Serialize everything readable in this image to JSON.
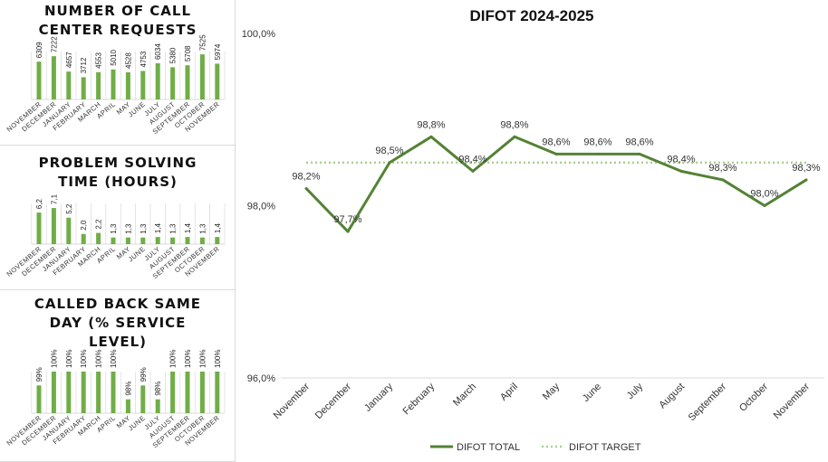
{
  "colors": {
    "bar": "#70ad47",
    "line": "#548235",
    "target": "#a9d18e",
    "grid": "#d9d9d9"
  },
  "chart_data": [
    {
      "type": "bar",
      "title": "NUMBER OF CALL CENTER REQUESTS",
      "categories": [
        "NOVEMBER",
        "DECEMBER",
        "JANUARY",
        "FEBRUARY",
        "MARCH",
        "APRIL",
        "MAY",
        "JUNE",
        "JULY",
        "AUGUST",
        "SEPTEMBER",
        "OCTOBER",
        "NOVEMBER"
      ],
      "values": [
        6309,
        7222,
        4657,
        3712,
        4553,
        5010,
        4528,
        4753,
        6034,
        5380,
        5708,
        7525,
        5974
      ],
      "labels": [
        "6309",
        "7222",
        "4657",
        "3712",
        "4553",
        "5010",
        "4528",
        "4753",
        "6034",
        "5380",
        "5708",
        "7525",
        "5974"
      ],
      "ylim": [
        0,
        8000
      ]
    },
    {
      "type": "bar",
      "title": "PROBLEM SOLVING TIME (HOURS)",
      "categories": [
        "NOVEMBER",
        "DECEMBER",
        "JANUARY",
        "FEBRUARY",
        "MARCH",
        "APRIL",
        "MAY",
        "JUNE",
        "JULY",
        "AUGUST",
        "SEPTEMBER",
        "OCTOBER",
        "NOVEMBER"
      ],
      "values": [
        6.2,
        7.1,
        5.2,
        2.0,
        2.2,
        1.3,
        1.3,
        1.3,
        1.4,
        1.3,
        1.4,
        1.3,
        1.4
      ],
      "labels": [
        "6,2",
        "7,1",
        "5,2",
        "2,0",
        "2,2",
        "1,3",
        "1,3",
        "1,3",
        "1,4",
        "1,3",
        "1,4",
        "1,3",
        "1,4"
      ],
      "ylim": [
        0,
        8
      ]
    },
    {
      "type": "bar",
      "title": "CALLED BACK SAME DAY (% SERVICE LEVEL)",
      "categories": [
        "NOVEMBER",
        "DECEMBER",
        "JANUARY",
        "FEBRUARY",
        "MARCH",
        "APRIL",
        "MAY",
        "JUNE",
        "JULY",
        "AUGUST",
        "SEPTEMBER",
        "OCTOBER",
        "NOVEMBER"
      ],
      "values": [
        99,
        100,
        100,
        100,
        100,
        100,
        98,
        99,
        98,
        100,
        100,
        100,
        100
      ],
      "labels": [
        "99%",
        "100%",
        "100%",
        "100%",
        "100%",
        "100%",
        "98%",
        "99%",
        "98%",
        "100%",
        "100%",
        "100%",
        "100%"
      ],
      "ylim": [
        97,
        100
      ]
    },
    {
      "type": "line",
      "title": "DIFOT 2024-2025",
      "categories": [
        "November",
        "December",
        "January",
        "February",
        "March",
        "April",
        "May",
        "June",
        "July",
        "August",
        "September",
        "October",
        "November"
      ],
      "series": [
        {
          "name": "DIFOT TOTAL",
          "values": [
            98.2,
            97.7,
            98.5,
            98.8,
            98.4,
            98.8,
            98.6,
            98.6,
            98.6,
            98.4,
            98.3,
            98.0,
            98.3
          ],
          "labels": [
            "98,2%",
            "97,7%",
            "98,5%",
            "98,8%",
            "98,4%",
            "98,8%",
            "98,6%",
            "98,6%",
            "98,6%",
            "98,4%",
            "98,3%",
            "98,0%",
            "98,3%"
          ]
        },
        {
          "name": "DIFOT TARGET",
          "value": 98.5,
          "style": "dotted"
        }
      ],
      "yticks": [
        "96,0%",
        "98,0%",
        "100,0%"
      ],
      "ytick_values": [
        96,
        98,
        100
      ],
      "ylim": [
        96,
        100
      ],
      "legend": "bottom"
    }
  ]
}
